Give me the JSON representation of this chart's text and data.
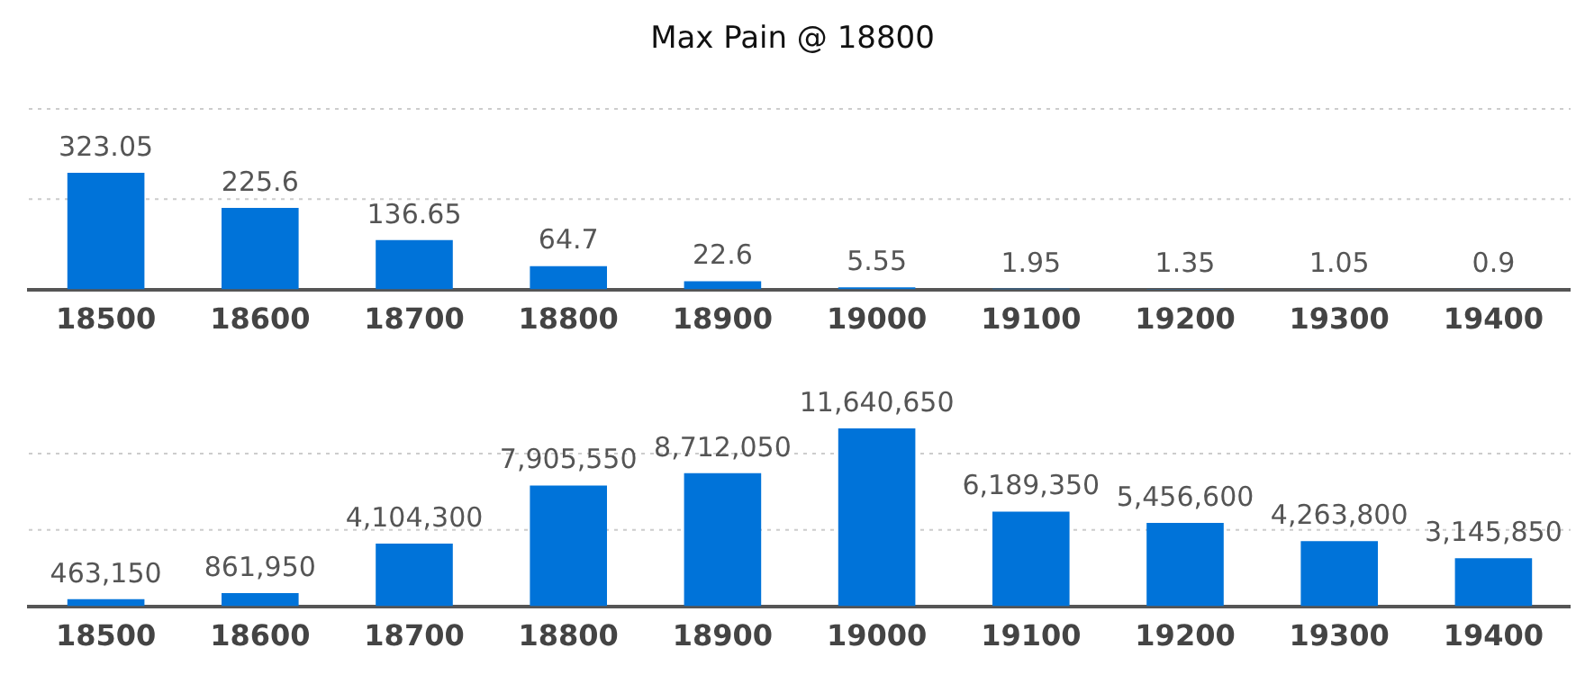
{
  "chart_data": [
    {
      "type": "bar",
      "title": "Max Pain @ 18800",
      "categories": [
        "18500",
        "18600",
        "18700",
        "18800",
        "18900",
        "19000",
        "19100",
        "19200",
        "19300",
        "19400"
      ],
      "values": [
        323.05,
        225.6,
        136.65,
        64.7,
        22.6,
        5.55,
        1.95,
        1.35,
        1.05,
        0.9
      ],
      "color": "#0073d9",
      "data_labels": true,
      "tick_labels": "x",
      "ref_lines": [
        {
          "axis": "y",
          "value": 250,
          "color": "#cccccc",
          "line_style": "dotted"
        },
        {
          "axis": "y",
          "value": 500,
          "color": "#cccccc",
          "line_style": "dotted"
        }
      ]
    },
    {
      "type": "bar",
      "categories": [
        "18500",
        "18600",
        "18700",
        "18800",
        "18900",
        "19000",
        "19100",
        "19200",
        "19300",
        "19400"
      ],
      "values": [
        463150,
        861950,
        4104300,
        7905550,
        8712050,
        11640650,
        6189350,
        5456600,
        4263800,
        3145850
      ],
      "color": "#0073d9",
      "value_labels": [
        "463,150",
        "861,950",
        "4,104,300",
        "7,905,550",
        "8,712,050",
        "11,640,650",
        "6,189,350",
        "5,456,600",
        "4,263,800",
        "3,145,850"
      ],
      "tick_labels": "x",
      "ref_lines": [
        {
          "axis": "y",
          "value": 5000000,
          "color": "#cccccc",
          "line_style": "dotted"
        },
        {
          "axis": "y",
          "value": 10000000,
          "color": "#cccccc",
          "line_style": "dotted"
        }
      ]
    }
  ]
}
